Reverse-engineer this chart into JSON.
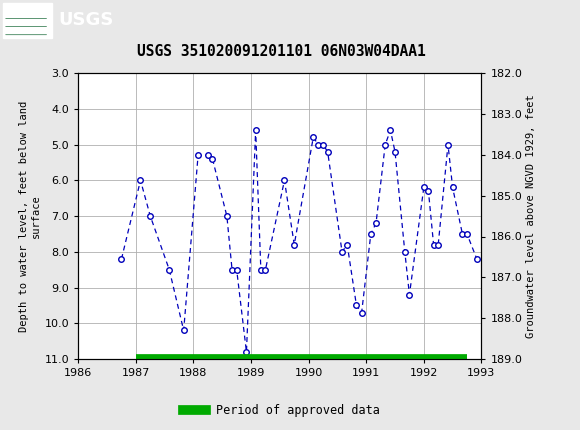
{
  "title": "USGS 351020091201101 06N03W04DAA1",
  "ylabel_left": "Depth to water level, feet below land\nsurface",
  "ylabel_right": "Groundwater level above NGVD 1929, feet",
  "xlim": [
    1986,
    1993
  ],
  "ylim_left": [
    3.0,
    11.0
  ],
  "ylim_right": [
    182.0,
    189.0
  ],
  "xticks": [
    1986,
    1987,
    1988,
    1989,
    1990,
    1991,
    1992,
    1993
  ],
  "yticks_left": [
    3.0,
    4.0,
    5.0,
    6.0,
    7.0,
    8.0,
    9.0,
    10.0,
    11.0
  ],
  "yticks_right": [
    182.0,
    183.0,
    184.0,
    185.0,
    186.0,
    187.0,
    188.0,
    189.0
  ],
  "data_x": [
    1986.75,
    1987.08,
    1987.25,
    1987.58,
    1987.83,
    1988.08,
    1988.25,
    1988.33,
    1988.58,
    1988.67,
    1988.75,
    1988.92,
    1989.08,
    1989.17,
    1989.25,
    1989.58,
    1989.75,
    1990.08,
    1990.17,
    1990.25,
    1990.33,
    1990.58,
    1990.67,
    1990.83,
    1990.92,
    1991.08,
    1991.17,
    1991.33,
    1991.42,
    1991.5,
    1991.67,
    1991.75,
    1992.0,
    1992.08,
    1992.17,
    1992.25,
    1992.42,
    1992.5,
    1992.67,
    1992.75,
    1992.92
  ],
  "data_y": [
    8.2,
    6.0,
    7.0,
    8.5,
    10.2,
    5.3,
    5.3,
    5.4,
    7.0,
    8.5,
    8.5,
    10.8,
    4.6,
    8.5,
    8.5,
    6.0,
    7.8,
    4.8,
    5.0,
    5.0,
    5.2,
    8.0,
    7.8,
    9.5,
    9.7,
    7.5,
    7.2,
    5.0,
    4.6,
    5.2,
    8.0,
    9.2,
    6.2,
    6.3,
    7.8,
    7.8,
    5.0,
    6.2,
    7.5,
    7.5,
    8.2
  ],
  "line_color": "#0000BB",
  "marker_color": "#0000BB",
  "marker_facecolor": "white",
  "marker_size": 4,
  "green_bar_color": "#00AA00",
  "green_bar_y": 11.0,
  "green_bar_xstart": 1987.0,
  "green_bar_xend": 1992.75,
  "header_bg_color": "#1a6b3a",
  "background_color": "#e8e8e8",
  "plot_bg_color": "#ffffff",
  "legend_label": "Period of approved data",
  "font_family": "monospace"
}
